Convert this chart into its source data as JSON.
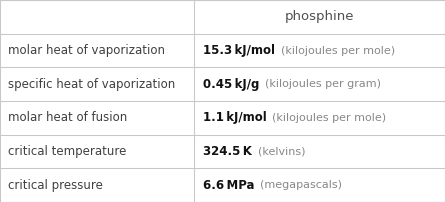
{
  "title": "phosphine",
  "rows": [
    {
      "label": "molar heat of vaporization",
      "value": "15.3",
      "unit": "kJ/mol",
      "extra": "(kilojoules per mole)"
    },
    {
      "label": "specific heat of vaporization",
      "value": "0.45",
      "unit": "kJ/g",
      "extra": "(kilojoules per gram)"
    },
    {
      "label": "molar heat of fusion",
      "value": "1.1",
      "unit": "kJ/mol",
      "extra": "(kilojoules per mole)"
    },
    {
      "label": "critical temperature",
      "value": "324.5",
      "unit": "K",
      "extra": "(kelvins)"
    },
    {
      "label": "critical pressure",
      "value": "6.6",
      "unit": "MPa",
      "extra": "(megapascals)"
    }
  ],
  "bg_color": "#ffffff",
  "line_color": "#c8c8c8",
  "label_color": "#404040",
  "value_color": "#111111",
  "extra_color": "#888888",
  "title_color": "#505050",
  "col_split": 0.435,
  "title_fontsize": 9.5,
  "label_fontsize": 8.5,
  "value_fontsize": 8.5,
  "extra_fontsize": 8.0
}
